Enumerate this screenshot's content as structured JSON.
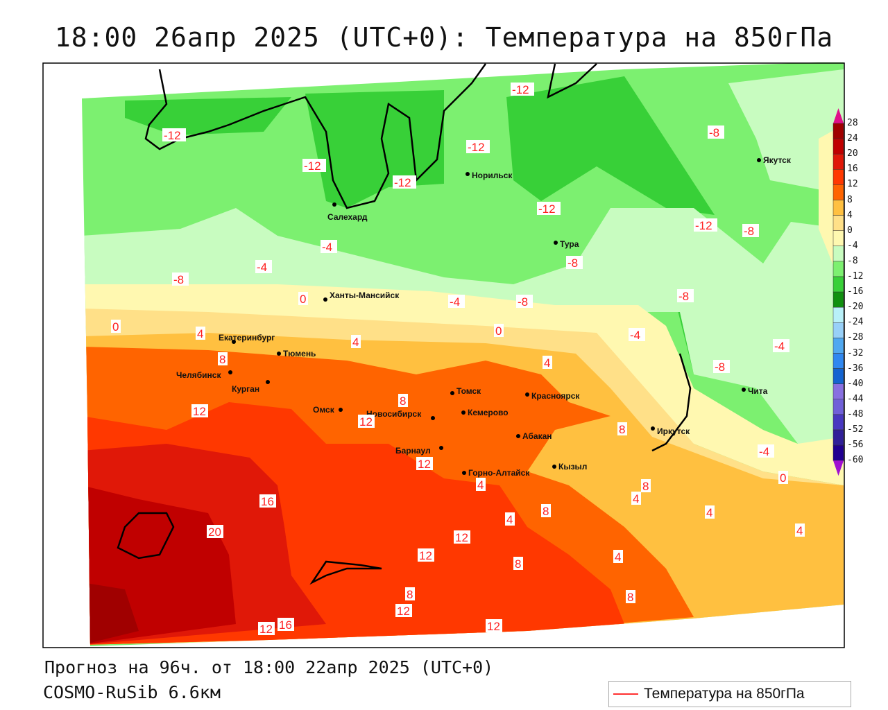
{
  "title": "18:00 26апр 2025 (UTC+0): Температура на 850гПа",
  "footer": {
    "forecast": "Прогноз на 96ч. от 18:00 22апр 2025 (UTC+0)",
    "model": "COSMO-RuSib 6.6км"
  },
  "legend": {
    "label": "Температура на 850гПа",
    "line_color": "#ff3030"
  },
  "colorbar": {
    "labels": [
      "28",
      "24",
      "20",
      "16",
      "12",
      "8",
      "4",
      "0",
      "-4",
      "-8",
      "-12",
      "-16",
      "-20",
      "-24",
      "-28",
      "-32",
      "-36",
      "-40",
      "-44",
      "-48",
      "-52",
      "-56",
      "-60"
    ],
    "colors": [
      "#a00000",
      "#c00000",
      "#e01808",
      "#ff3800",
      "#ff6400",
      "#ffc040",
      "#ffe088",
      "#fff8b0",
      "#c8fcc0",
      "#7cf070",
      "#38d038",
      "#109010",
      "#b8f0f8",
      "#98d0f8",
      "#50a8f0",
      "#3088f0",
      "#1464d0",
      "#8870e0",
      "#7060d8",
      "#4838c0",
      "#302098",
      "#200090"
    ],
    "top_arrow": "#e0108a",
    "bottom_arrow": "#a010d0"
  },
  "cities": [
    "Салехард",
    "Норильск",
    "Якутск",
    "Тура",
    "Ханты-Мансийск",
    "Екатеринбург",
    "Тюмень",
    "Челябинск",
    "Курган",
    "Омск",
    "Новосибирск",
    "Томск",
    "Кемерово",
    "Красноярск",
    "Абакан",
    "Барнаул",
    "Горно-Алтайск",
    "Кызыл",
    "Иркутск",
    "Чита"
  ],
  "contour_labels": [
    "-12",
    "-12",
    "-12",
    "-12",
    "-12",
    "-12",
    "-12",
    "-8",
    "-8",
    "-8",
    "-8",
    "-8",
    "-8",
    "-8",
    "-4",
    "-4",
    "-4",
    "-4",
    "-4",
    "-4",
    "0",
    "0",
    "0",
    "0",
    "4",
    "4",
    "4",
    "4",
    "4",
    "4",
    "4",
    "4",
    "4",
    "8",
    "8",
    "8",
    "8",
    "8",
    "8",
    "8",
    "8",
    "12",
    "12",
    "12",
    "12",
    "12",
    "12",
    "12",
    "12",
    "16",
    "16",
    "20"
  ]
}
